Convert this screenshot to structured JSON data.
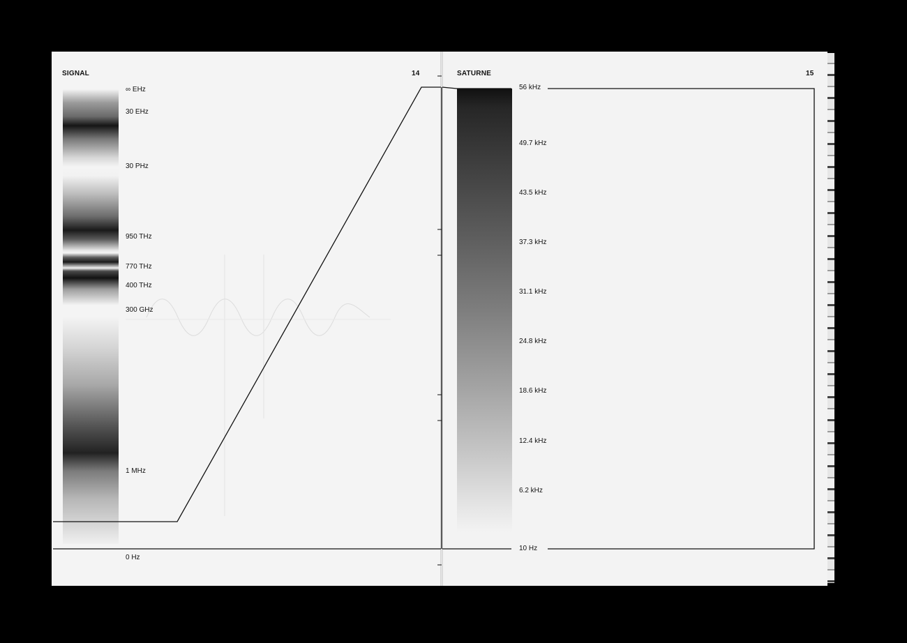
{
  "left_page": {
    "running_head": "SIGNAL",
    "page_number": "14",
    "frequency_labels": [
      "∞ EHz",
      "30 EHz",
      "30 PHz",
      "950 THz",
      "770 THz",
      "400 THz",
      "300 GHz",
      "1 MHz",
      "0 Hz"
    ]
  },
  "right_page": {
    "running_head": "SATURNE",
    "page_number": "15",
    "frequency_labels": [
      "56 kHz",
      "49.7 kHz",
      "43.5 kHz",
      "37.3 kHz",
      "31.1 kHz",
      "24.8 kHz",
      "18.6 kHz",
      "12.4 kHz",
      "6.2 kHz",
      "10 Hz"
    ]
  }
}
